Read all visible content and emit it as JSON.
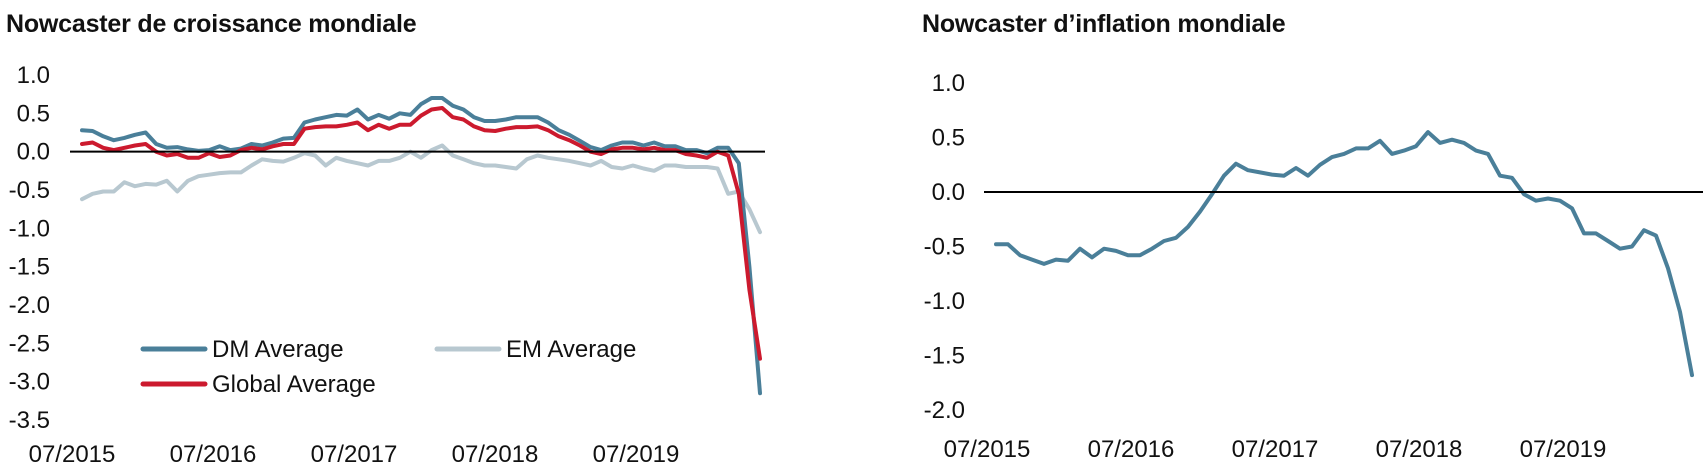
{
  "chart_data": [
    {
      "type": "line",
      "title": "Nowcaster de croissance mondiale",
      "xlabel": "",
      "ylabel": "",
      "ylim": [
        -3.5,
        1.0
      ],
      "yticks": [
        "1.0",
        "0.5",
        "0.0",
        "-0.5",
        "-1.0",
        "-1.5",
        "-2.0",
        "-2.5",
        "-3.0",
        "-3.5"
      ],
      "xticks": [
        "07/2015",
        "07/2016",
        "07/2017",
        "07/2018",
        "07/2019"
      ],
      "x_start": "2015-07",
      "legend_placement": "bottom-left",
      "series": [
        {
          "name": "DM Average",
          "color": "#4a7f99",
          "values": [
            0.28,
            0.27,
            0.2,
            0.15,
            0.18,
            0.22,
            0.25,
            0.1,
            0.05,
            0.06,
            0.03,
            0.01,
            0.02,
            0.07,
            0.02,
            0.04,
            0.1,
            0.08,
            0.12,
            0.17,
            0.18,
            0.38,
            0.42,
            0.45,
            0.48,
            0.47,
            0.55,
            0.42,
            0.48,
            0.43,
            0.5,
            0.48,
            0.62,
            0.7,
            0.7,
            0.6,
            0.55,
            0.45,
            0.4,
            0.4,
            0.42,
            0.45,
            0.45,
            0.45,
            0.38,
            0.28,
            0.22,
            0.14,
            0.06,
            0.02,
            0.08,
            0.12,
            0.12,
            0.08,
            0.12,
            0.07,
            0.07,
            0.02,
            0.02,
            -0.02,
            0.05,
            0.05,
            -0.15,
            -1.5,
            -3.15
          ]
        },
        {
          "name": "EM Average",
          "color": "#b8c8d0",
          "values": [
            -0.62,
            -0.55,
            -0.52,
            -0.52,
            -0.4,
            -0.45,
            -0.42,
            -0.43,
            -0.38,
            -0.52,
            -0.38,
            -0.32,
            -0.3,
            -0.28,
            -0.27,
            -0.27,
            -0.18,
            -0.1,
            -0.12,
            -0.13,
            -0.08,
            -0.02,
            -0.05,
            -0.18,
            -0.08,
            -0.12,
            -0.15,
            -0.18,
            -0.12,
            -0.12,
            -0.08,
            0.0,
            -0.08,
            0.02,
            0.08,
            -0.05,
            -0.1,
            -0.15,
            -0.18,
            -0.18,
            -0.2,
            -0.22,
            -0.1,
            -0.05,
            -0.08,
            -0.1,
            -0.12,
            -0.15,
            -0.18,
            -0.12,
            -0.2,
            -0.22,
            -0.18,
            -0.22,
            -0.25,
            -0.18,
            -0.18,
            -0.2,
            -0.2,
            -0.2,
            -0.22,
            -0.55,
            -0.52,
            -0.75,
            -1.05
          ]
        },
        {
          "name": "Global Average",
          "color": "#cc1a2e",
          "values": [
            0.1,
            0.12,
            0.05,
            0.02,
            0.05,
            0.08,
            0.1,
            0.0,
            -0.05,
            -0.03,
            -0.08,
            -0.08,
            -0.02,
            -0.07,
            -0.05,
            0.02,
            0.05,
            0.03,
            0.07,
            0.1,
            0.1,
            0.3,
            0.32,
            0.33,
            0.33,
            0.35,
            0.38,
            0.28,
            0.35,
            0.3,
            0.35,
            0.35,
            0.47,
            0.55,
            0.57,
            0.45,
            0.42,
            0.33,
            0.28,
            0.27,
            0.3,
            0.32,
            0.32,
            0.33,
            0.28,
            0.2,
            0.15,
            0.08,
            0.0,
            -0.03,
            0.03,
            0.05,
            0.05,
            0.03,
            0.05,
            0.02,
            0.02,
            -0.03,
            -0.05,
            -0.08,
            0.0,
            -0.05,
            -0.55,
            -1.8,
            -2.7
          ]
        }
      ]
    },
    {
      "type": "line",
      "title": "Nowcaster d’inflation mondiale",
      "xlabel": "",
      "ylabel": "",
      "ylim": [
        -2.0,
        1.0
      ],
      "yticks": [
        "1.0",
        "0.5",
        "0.0",
        "-0.5",
        "-1.0",
        "-1.5",
        "-2.0"
      ],
      "xticks": [
        "07/2015",
        "07/2016",
        "07/2017",
        "07/2018",
        "07/2019"
      ],
      "x_start": "2015-07",
      "series": [
        {
          "name": "",
          "color": "#4a7f99",
          "values": [
            -0.48,
            -0.48,
            -0.58,
            -0.62,
            -0.66,
            -0.62,
            -0.63,
            -0.52,
            -0.6,
            -0.52,
            -0.54,
            -0.58,
            -0.58,
            -0.52,
            -0.45,
            -0.42,
            -0.32,
            -0.18,
            -0.02,
            0.15,
            0.26,
            0.2,
            0.18,
            0.16,
            0.15,
            0.22,
            0.15,
            0.25,
            0.32,
            0.35,
            0.4,
            0.4,
            0.47,
            0.35,
            0.38,
            0.42,
            0.55,
            0.45,
            0.48,
            0.45,
            0.38,
            0.35,
            0.15,
            0.13,
            -0.02,
            -0.08,
            -0.06,
            -0.08,
            -0.15,
            -0.38,
            -0.38,
            -0.45,
            -0.52,
            -0.5,
            -0.35,
            -0.4,
            -0.7,
            -1.1,
            -1.68
          ]
        }
      ]
    }
  ],
  "legend_labels": {
    "dm": "DM Average",
    "em": "EM Average",
    "global": "Global Average"
  }
}
